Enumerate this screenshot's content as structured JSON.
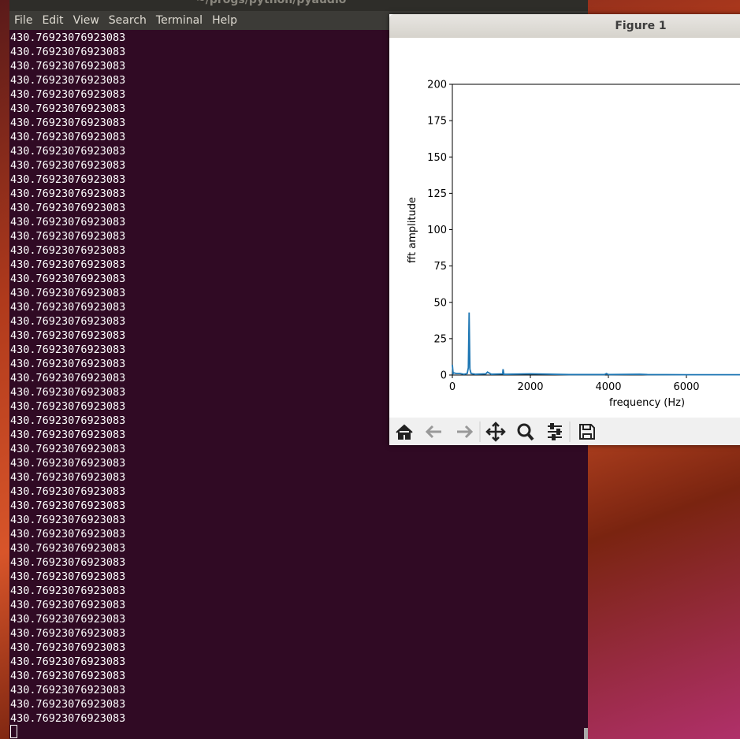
{
  "window_title": "~/progs/python/pyaudio",
  "menu": [
    "File",
    "Edit",
    "View",
    "Search",
    "Terminal",
    "Help"
  ],
  "terminal_lines": [
    "430.76923076923083",
    "430.76923076923083",
    "430.76923076923083",
    "430.76923076923083",
    "430.76923076923083",
    "430.76923076923083",
    "430.76923076923083",
    "430.76923076923083",
    "430.76923076923083",
    "430.76923076923083",
    "430.76923076923083",
    "430.76923076923083",
    "430.76923076923083",
    "430.76923076923083",
    "430.76923076923083",
    "430.76923076923083",
    "430.76923076923083",
    "430.76923076923083",
    "430.76923076923083",
    "430.76923076923083",
    "430.76923076923083",
    "430.76923076923083",
    "430.76923076923083",
    "430.76923076923083",
    "430.76923076923083",
    "430.76923076923083",
    "430.76923076923083",
    "430.76923076923083",
    "430.76923076923083",
    "430.76923076923083",
    "430.76923076923083",
    "430.76923076923083",
    "430.76923076923083",
    "430.76923076923083",
    "430.76923076923083",
    "430.76923076923083",
    "430.76923076923083",
    "430.76923076923083",
    "430.76923076923083",
    "430.76923076923083",
    "430.76923076923083",
    "430.76923076923083",
    "430.76923076923083",
    "430.76923076923083",
    "430.76923076923083",
    "430.76923076923083",
    "430.76923076923083",
    "430.76923076923083",
    "430.76923076923083"
  ],
  "figure": {
    "title": "Figure 1",
    "chart_data": {
      "type": "line",
      "xlabel": "frequency (Hz)",
      "ylabel": "fft amplitude",
      "x": [
        0,
        20,
        40,
        100,
        200,
        300,
        380,
        410,
        430,
        450,
        480,
        600,
        860,
        900,
        1000,
        1290,
        1300,
        1320,
        1400,
        2000,
        3000,
        3900,
        3950,
        4000,
        4800,
        5000,
        6000,
        7400
      ],
      "series": [
        {
          "color": "#1f77b4",
          "values": [
            7,
            1,
            1.5,
            1,
            1,
            0.5,
            1,
            5,
            43,
            4,
            1,
            0.5,
            0.8,
            2,
            0.5,
            0.8,
            4,
            0.5,
            0.5,
            0.8,
            0.3,
            0.3,
            1,
            0.3,
            0.5,
            0.3,
            0.2,
            0.2
          ]
        }
      ],
      "xlim": [
        0,
        22050
      ],
      "ylim": [
        0,
        200
      ],
      "xticks": [
        0,
        2000,
        4000,
        6000
      ],
      "yticks": [
        0,
        25,
        50,
        75,
        100,
        125,
        150,
        175,
        200
      ]
    }
  }
}
